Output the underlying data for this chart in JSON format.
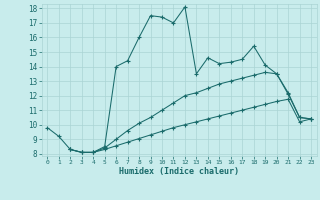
{
  "xlabel": "Humidex (Indice chaleur)",
  "bg_color": "#c8ecec",
  "line_color": "#1a6b6b",
  "grid_color": "#aad4d4",
  "xlim": [
    0,
    23
  ],
  "ylim": [
    8,
    18
  ],
  "xticks": [
    0,
    1,
    2,
    3,
    4,
    5,
    6,
    7,
    8,
    9,
    10,
    11,
    12,
    13,
    14,
    15,
    16,
    17,
    18,
    19,
    20,
    21,
    22,
    23
  ],
  "yticks": [
    8,
    9,
    10,
    11,
    12,
    13,
    14,
    15,
    16,
    17,
    18
  ],
  "line1_x": [
    0,
    1,
    2,
    3,
    4,
    5,
    6,
    7,
    8,
    9,
    10,
    11,
    12,
    13,
    14,
    15,
    16,
    17,
    18,
    19,
    20,
    21,
    22,
    23
  ],
  "line1_y": [
    9.8,
    9.2,
    8.3,
    8.1,
    8.1,
    8.5,
    14.0,
    14.4,
    16.0,
    17.5,
    17.4,
    17.0,
    18.1,
    13.5,
    14.6,
    14.2,
    14.3,
    14.5,
    15.4,
    14.1,
    13.5,
    12.1,
    10.5,
    10.4
  ],
  "line2_x": [
    2,
    3,
    4,
    5,
    6,
    7,
    8,
    9,
    10,
    11,
    12,
    13,
    14,
    15,
    16,
    17,
    18,
    19,
    20,
    21,
    22,
    23
  ],
  "line2_y": [
    8.3,
    8.1,
    8.1,
    8.4,
    9.0,
    9.6,
    10.1,
    10.5,
    11.0,
    11.5,
    12.0,
    12.2,
    12.5,
    12.8,
    13.0,
    13.2,
    13.4,
    13.6,
    13.5,
    12.2,
    10.5,
    10.4
  ],
  "line3_x": [
    2,
    3,
    4,
    5,
    6,
    7,
    8,
    9,
    10,
    11,
    12,
    13,
    14,
    15,
    16,
    17,
    18,
    19,
    20,
    21,
    22,
    23
  ],
  "line3_y": [
    8.3,
    8.1,
    8.1,
    8.3,
    8.55,
    8.8,
    9.05,
    9.3,
    9.55,
    9.8,
    10.0,
    10.2,
    10.4,
    10.6,
    10.8,
    11.0,
    11.2,
    11.4,
    11.6,
    11.75,
    10.2,
    10.4
  ]
}
